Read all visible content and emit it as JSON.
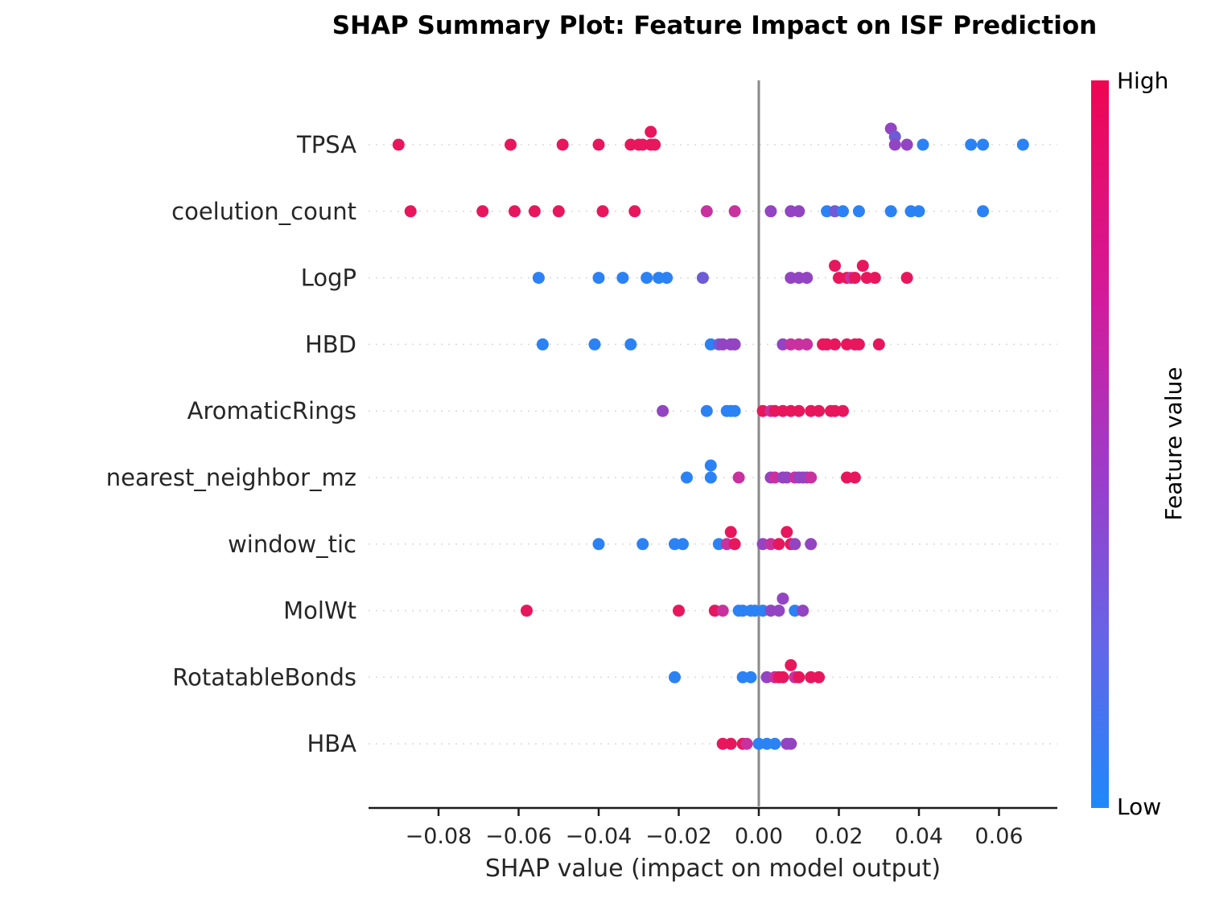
{
  "chart_data": {
    "type": "scatter",
    "title": "SHAP Summary Plot: Feature Impact on ISF Prediction",
    "xlabel": "SHAP value (impact on model output)",
    "xlim": [
      -0.097,
      0.074
    ],
    "x_ticks": [
      -0.08,
      -0.06,
      -0.04,
      -0.02,
      0.0,
      0.02,
      0.04,
      0.06
    ],
    "x_tick_labels": [
      "−0.08",
      "−0.06",
      "−0.04",
      "−0.02",
      "0.00",
      "0.02",
      "0.04",
      "0.06"
    ],
    "grid": "horizontal-dotted",
    "zero_line": true,
    "legend_position": "colorbar-right",
    "colorbar": {
      "title": "Feature value",
      "high_label": "High",
      "low_label": "Low",
      "gradient": [
        {
          "offset": "0%",
          "color": "#ef0552"
        },
        {
          "offset": "30%",
          "color": "#d31a9b"
        },
        {
          "offset": "55%",
          "color": "#9a3ec9"
        },
        {
          "offset": "78%",
          "color": "#6366e8"
        },
        {
          "offset": "100%",
          "color": "#1e88fa"
        }
      ]
    },
    "palette": {
      "R": "#e8175d",
      "M": "#c9319f",
      "P": "#9344c2",
      "BP": "#6e5bd6",
      "B": "#2b82f5"
    },
    "features": [
      {
        "name": "TPSA",
        "points": [
          [
            -0.09,
            "R"
          ],
          [
            -0.062,
            "R"
          ],
          [
            -0.049,
            "R"
          ],
          [
            -0.04,
            "R"
          ],
          [
            -0.032,
            "R"
          ],
          [
            -0.03,
            "R"
          ],
          [
            -0.029,
            "R"
          ],
          [
            -0.027,
            "R",
            -16
          ],
          [
            -0.027,
            "R"
          ],
          [
            -0.026,
            "R"
          ],
          [
            0.033,
            "P",
            -20
          ],
          [
            0.034,
            "BP",
            -10
          ],
          [
            0.034,
            "P"
          ],
          [
            0.037,
            "P"
          ],
          [
            0.041,
            "B"
          ],
          [
            0.053,
            "B"
          ],
          [
            0.056,
            "B"
          ],
          [
            0.066,
            "B"
          ]
        ]
      },
      {
        "name": "coelution_count",
        "points": [
          [
            -0.087,
            "R"
          ],
          [
            -0.069,
            "R"
          ],
          [
            -0.061,
            "R"
          ],
          [
            -0.056,
            "R"
          ],
          [
            -0.05,
            "R"
          ],
          [
            -0.039,
            "R"
          ],
          [
            -0.031,
            "R"
          ],
          [
            -0.013,
            "M"
          ],
          [
            -0.006,
            "M"
          ],
          [
            0.003,
            "P"
          ],
          [
            0.008,
            "P"
          ],
          [
            0.01,
            "P"
          ],
          [
            0.017,
            "B"
          ],
          [
            0.019,
            "BP"
          ],
          [
            0.021,
            "B"
          ],
          [
            0.025,
            "B"
          ],
          [
            0.033,
            "B"
          ],
          [
            0.038,
            "B"
          ],
          [
            0.04,
            "B"
          ],
          [
            0.056,
            "B"
          ]
        ]
      },
      {
        "name": "LogP",
        "points": [
          [
            -0.055,
            "B"
          ],
          [
            -0.04,
            "B"
          ],
          [
            -0.034,
            "B"
          ],
          [
            -0.028,
            "B"
          ],
          [
            -0.025,
            "B"
          ],
          [
            -0.023,
            "B"
          ],
          [
            -0.014,
            "BP"
          ],
          [
            0.008,
            "P"
          ],
          [
            0.01,
            "P"
          ],
          [
            0.012,
            "P"
          ],
          [
            0.019,
            "R",
            -15
          ],
          [
            0.02,
            "R"
          ],
          [
            0.022,
            "R"
          ],
          [
            0.023,
            "M"
          ],
          [
            0.024,
            "R"
          ],
          [
            0.026,
            "R",
            -15
          ],
          [
            0.027,
            "R"
          ],
          [
            0.029,
            "R"
          ],
          [
            0.037,
            "R"
          ]
        ]
      },
      {
        "name": "HBD",
        "points": [
          [
            -0.054,
            "B"
          ],
          [
            -0.041,
            "B"
          ],
          [
            -0.032,
            "B"
          ],
          [
            -0.012,
            "B"
          ],
          [
            -0.01,
            "BP"
          ],
          [
            -0.009,
            "P"
          ],
          [
            -0.007,
            "P"
          ],
          [
            -0.006,
            "P"
          ],
          [
            0.006,
            "P"
          ],
          [
            0.008,
            "M"
          ],
          [
            0.01,
            "M"
          ],
          [
            0.012,
            "M"
          ],
          [
            0.016,
            "R"
          ],
          [
            0.017,
            "R"
          ],
          [
            0.019,
            "R"
          ],
          [
            0.022,
            "R"
          ],
          [
            0.024,
            "R"
          ],
          [
            0.025,
            "R"
          ],
          [
            0.03,
            "R"
          ]
        ]
      },
      {
        "name": "AromaticRings",
        "points": [
          [
            -0.024,
            "P"
          ],
          [
            -0.013,
            "B"
          ],
          [
            -0.008,
            "B"
          ],
          [
            -0.007,
            "B"
          ],
          [
            -0.006,
            "B"
          ],
          [
            0.001,
            "R"
          ],
          [
            0.003,
            "M"
          ],
          [
            0.004,
            "R"
          ],
          [
            0.006,
            "R"
          ],
          [
            0.008,
            "R"
          ],
          [
            0.01,
            "R"
          ],
          [
            0.013,
            "R"
          ],
          [
            0.015,
            "R"
          ],
          [
            0.018,
            "R"
          ],
          [
            0.019,
            "R"
          ],
          [
            0.021,
            "R"
          ]
        ]
      },
      {
        "name": "nearest_neighbor_mz",
        "points": [
          [
            -0.018,
            "B"
          ],
          [
            -0.012,
            "B",
            -15
          ],
          [
            -0.012,
            "B"
          ],
          [
            -0.005,
            "M"
          ],
          [
            0.003,
            "P"
          ],
          [
            0.004,
            "M"
          ],
          [
            0.006,
            "P"
          ],
          [
            0.007,
            "P"
          ],
          [
            0.009,
            "M"
          ],
          [
            0.01,
            "P"
          ],
          [
            0.011,
            "P"
          ],
          [
            0.012,
            "P"
          ],
          [
            0.013,
            "M"
          ],
          [
            0.022,
            "R"
          ],
          [
            0.024,
            "R"
          ]
        ]
      },
      {
        "name": "window_tic",
        "points": [
          [
            -0.04,
            "B"
          ],
          [
            -0.029,
            "B"
          ],
          [
            -0.021,
            "B"
          ],
          [
            -0.019,
            "B"
          ],
          [
            -0.01,
            "B"
          ],
          [
            -0.008,
            "M"
          ],
          [
            -0.007,
            "R",
            -15
          ],
          [
            -0.006,
            "R"
          ],
          [
            0.001,
            "P"
          ],
          [
            0.003,
            "M"
          ],
          [
            0.005,
            "R"
          ],
          [
            0.007,
            "R",
            -15
          ],
          [
            0.008,
            "R"
          ],
          [
            0.009,
            "P"
          ],
          [
            0.013,
            "P"
          ]
        ]
      },
      {
        "name": "MolWt",
        "points": [
          [
            -0.058,
            "R"
          ],
          [
            -0.02,
            "R"
          ],
          [
            -0.011,
            "R"
          ],
          [
            -0.009,
            "M"
          ],
          [
            -0.005,
            "B"
          ],
          [
            -0.004,
            "B"
          ],
          [
            -0.002,
            "B"
          ],
          [
            -0.001,
            "B"
          ],
          [
            0.001,
            "B"
          ],
          [
            0.003,
            "P"
          ],
          [
            0.005,
            "P"
          ],
          [
            0.006,
            "P",
            -15
          ],
          [
            0.009,
            "B"
          ],
          [
            0.011,
            "P"
          ]
        ]
      },
      {
        "name": "RotatableBonds",
        "points": [
          [
            -0.021,
            "B"
          ],
          [
            -0.004,
            "B"
          ],
          [
            -0.002,
            "B"
          ],
          [
            0.002,
            "P"
          ],
          [
            0.004,
            "M"
          ],
          [
            0.005,
            "R"
          ],
          [
            0.006,
            "R"
          ],
          [
            0.008,
            "R",
            -15
          ],
          [
            0.009,
            "M"
          ],
          [
            0.01,
            "R"
          ],
          [
            0.013,
            "R"
          ],
          [
            0.015,
            "R"
          ]
        ]
      },
      {
        "name": "HBA",
        "points": [
          [
            -0.009,
            "R"
          ],
          [
            -0.007,
            "R"
          ],
          [
            -0.004,
            "R"
          ],
          [
            -0.003,
            "M"
          ],
          [
            0.0,
            "B"
          ],
          [
            0.002,
            "B"
          ],
          [
            0.004,
            "B"
          ],
          [
            0.007,
            "P"
          ],
          [
            0.008,
            "P"
          ]
        ]
      }
    ]
  }
}
